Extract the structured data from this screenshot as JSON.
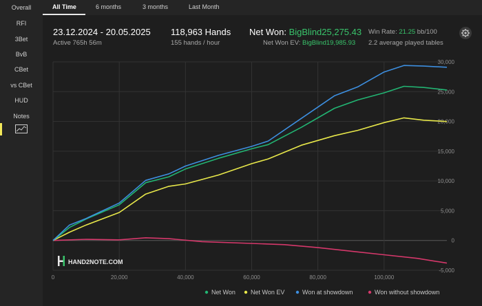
{
  "sidebar": {
    "items": [
      "Overall",
      "RFI",
      "3Bet",
      "BvB",
      "CBet",
      "vs CBet",
      "HUD",
      "Notes"
    ],
    "active_icon": "line-chart-icon"
  },
  "tabs": [
    "All Time",
    "6 months",
    "3 months",
    "Last Month"
  ],
  "active_tab": "All Time",
  "stats": {
    "date_range": "23.12.2024 - 20.05.2025",
    "active_time": "Active 765h 56m",
    "hands": "118,963 Hands",
    "hands_rate": "155 hands / hour",
    "net_won_label": "Net Won:",
    "net_won_value": "BigBlind25,275.43",
    "net_won_ev_label": "Net Won  EV:",
    "net_won_ev_value": "BigBlind19,985.93",
    "win_rate_label": "Win Rate:",
    "win_rate_value": "21.25",
    "win_rate_unit": "bb/100",
    "tables": "2.2 average played tables"
  },
  "watermark": "HAND2NOTE.COM",
  "colors": {
    "net_won": "#22b573",
    "net_won_ev": "#e8e84a",
    "won_at_showdown": "#3d8fe0",
    "won_without_showdown": "#d6386b",
    "accent_green": "#39c46b",
    "active_marker": "#f2e85a"
  },
  "chart_data": {
    "type": "line",
    "x_ticks": [
      "0",
      "20,000",
      "40,000",
      "60,000",
      "80,000",
      "100,000"
    ],
    "y_ticks": [
      "30,000",
      "25,000",
      "20,000",
      "15,000",
      "10,000",
      "5,000",
      "0",
      "-5,000"
    ],
    "xlim": [
      0,
      118963
    ],
    "ylim": [
      -5000,
      30000
    ],
    "grid": true,
    "legend_position": "bottom-right",
    "series": [
      {
        "name": "Net Won",
        "color": "#22b573",
        "x": [
          0,
          5000,
          10000,
          20000,
          28000,
          35000,
          40000,
          50000,
          60000,
          65000,
          75000,
          85000,
          92000,
          100000,
          106000,
          112000,
          118963
        ],
        "y": [
          0,
          2200,
          3600,
          6000,
          9700,
          10700,
          12000,
          13800,
          15400,
          16100,
          19000,
          22200,
          23600,
          24800,
          25900,
          25700,
          25275
        ]
      },
      {
        "name": "Net Won  EV",
        "color": "#e8e84a",
        "x": [
          0,
          5000,
          10000,
          20000,
          28000,
          35000,
          40000,
          50000,
          60000,
          65000,
          75000,
          85000,
          92000,
          100000,
          106000,
          112000,
          118963
        ],
        "y": [
          0,
          1400,
          2600,
          4700,
          7800,
          9100,
          9500,
          11000,
          12900,
          13700,
          16000,
          17600,
          18500,
          19800,
          20600,
          20200,
          19986
        ]
      },
      {
        "name": "Won at showdown",
        "color": "#3d8fe0",
        "x": [
          0,
          5000,
          10000,
          20000,
          28000,
          35000,
          40000,
          50000,
          60000,
          65000,
          75000,
          85000,
          92000,
          100000,
          106000,
          112000,
          118963
        ],
        "y": [
          0,
          2600,
          3700,
          6300,
          10100,
          11200,
          12500,
          14300,
          15800,
          16700,
          20500,
          24300,
          25800,
          28300,
          29400,
          29300,
          29100
        ]
      },
      {
        "name": "Won without showdown",
        "color": "#d6386b",
        "x": [
          0,
          10000,
          20000,
          28000,
          35000,
          45000,
          60000,
          70000,
          80000,
          90000,
          100000,
          110000,
          118963
        ],
        "y": [
          0,
          200,
          100,
          450,
          300,
          -200,
          -500,
          -700,
          -1200,
          -1800,
          -2400,
          -3000,
          -3800
        ]
      }
    ]
  }
}
